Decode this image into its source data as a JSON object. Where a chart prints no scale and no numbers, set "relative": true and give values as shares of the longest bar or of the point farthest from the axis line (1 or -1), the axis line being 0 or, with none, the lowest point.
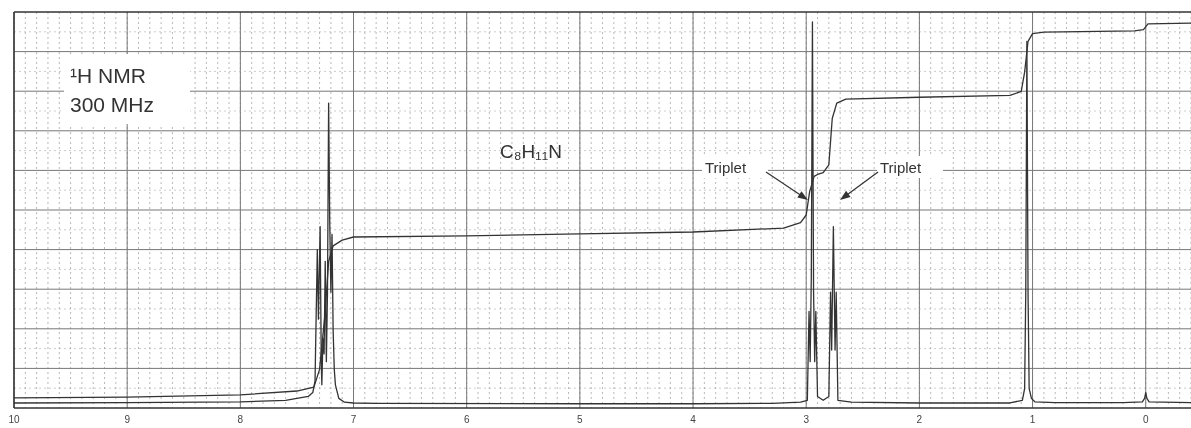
{
  "chart_data": {
    "type": "line",
    "title": "¹H NMR",
    "subtitle": "300 MHz",
    "relative": true,
    "grid": true,
    "marker": "none",
    "line_style": "solid",
    "xlim": [
      10,
      -0.4
    ],
    "xticks": [
      10,
      9,
      8,
      7,
      6,
      5,
      4,
      3,
      2,
      1,
      0
    ],
    "annotations": [
      "C₈H₁₁N",
      "Triplet",
      "Triplet"
    ],
    "series": [
      {
        "color": "#333333",
        "x": [
          10,
          9,
          8,
          7.6,
          7.4,
          7.36,
          7.34,
          7.32,
          7.31,
          7.295,
          7.285,
          7.28,
          7.27,
          7.26,
          7.25,
          7.24,
          7.23,
          7.22,
          7.21,
          7.2,
          7.19,
          7.18,
          7.17,
          7.16,
          7.13,
          7.08,
          7.0,
          6.8,
          5,
          4,
          3.3,
          3.05,
          2.99,
          2.975,
          2.965,
          2.955,
          2.945,
          2.935,
          2.925,
          2.915,
          2.9,
          2.85,
          2.8,
          2.785,
          2.775,
          2.76,
          2.745,
          2.735,
          2.72,
          2.6,
          2,
          1.2,
          1.09,
          1.07,
          1.06,
          1.05,
          1.04,
          1.03,
          1.01,
          0.98,
          0.8,
          0.2,
          0.03,
          0.01,
          0,
          -0.01,
          -0.03,
          -0.4
        ],
        "values": [
          0.013,
          0.014,
          0.016,
          0.02,
          0.03,
          0.04,
          0.07,
          0.41,
          0.23,
          0.47,
          0.12,
          0.06,
          0.18,
          0.14,
          0.38,
          0.12,
          0.3,
          0.79,
          0.48,
          0.3,
          0.45,
          0.2,
          0.1,
          0.06,
          0.025,
          0.015,
          0.013,
          0.012,
          0.011,
          0.011,
          0.012,
          0.015,
          0.02,
          0.25,
          0.12,
          0.34,
          1.0,
          0.3,
          0.12,
          0.25,
          0.03,
          0.02,
          0.03,
          0.3,
          0.15,
          0.47,
          0.15,
          0.3,
          0.02,
          0.015,
          0.013,
          0.013,
          0.02,
          0.05,
          0.3,
          0.95,
          0.3,
          0.05,
          0.025,
          0.016,
          0.014,
          0.014,
          0.016,
          0.025,
          0.04,
          0.025,
          0.016,
          0.014
        ]
      },
      {
        "color": "#333333",
        "x": [
          10,
          9,
          8,
          7.5,
          7.35,
          7.3,
          7.25,
          7.22,
          7.18,
          7.1,
          7,
          6,
          5,
          4,
          3.2,
          3.05,
          3,
          2.97,
          2.93,
          2.9,
          2.85,
          2.8,
          2.77,
          2.73,
          2.65,
          2,
          1.2,
          1.1,
          1.07,
          1.04,
          1,
          0.9,
          0.1,
          0.02,
          -0.02,
          -0.4
        ],
        "values": [
          0.026,
          0.028,
          0.034,
          0.044,
          0.054,
          0.1,
          0.25,
          0.38,
          0.42,
          0.435,
          0.443,
          0.446,
          0.451,
          0.456,
          0.466,
          0.48,
          0.5,
          0.56,
          0.6,
          0.605,
          0.61,
          0.63,
          0.75,
          0.79,
          0.8,
          0.805,
          0.81,
          0.82,
          0.87,
          0.95,
          0.97,
          0.974,
          0.977,
          0.98,
          0.995,
          0.997
        ]
      }
    ]
  }
}
